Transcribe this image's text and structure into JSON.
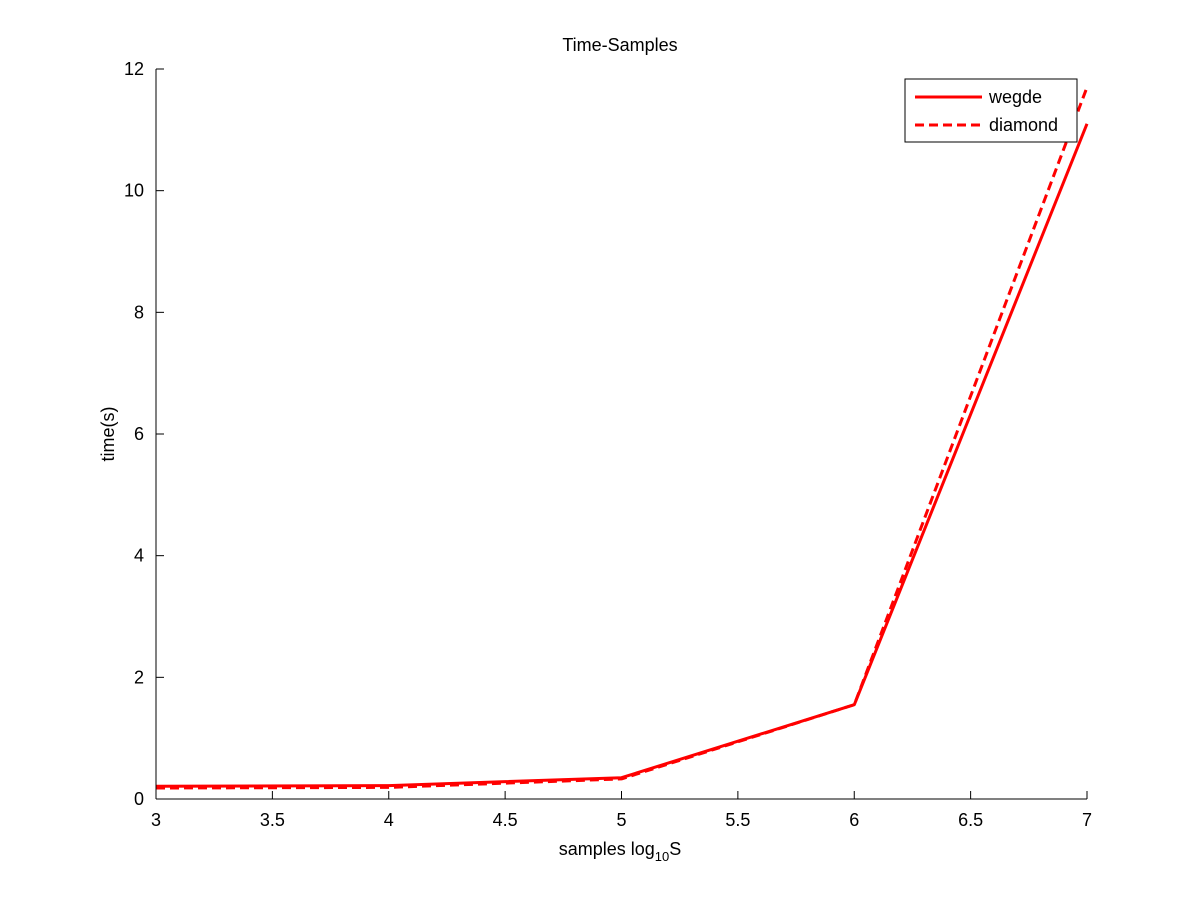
{
  "chart_data": {
    "type": "line",
    "title": "Time-Samples",
    "xlabel": {
      "prefix": "samples log",
      "subscript": "10",
      "suffix": "S"
    },
    "ylabel": "time(s)",
    "xlim": [
      3,
      7
    ],
    "ylim": [
      0,
      12
    ],
    "xticks": [
      3,
      3.5,
      4,
      4.5,
      5,
      5.5,
      6,
      6.5,
      7
    ],
    "xtick_labels": [
      "3",
      "3.5",
      "4",
      "4.5",
      "5",
      "5.5",
      "6",
      "6.5",
      "7"
    ],
    "yticks": [
      0,
      2,
      4,
      6,
      8,
      10,
      12
    ],
    "ytick_labels": [
      "0",
      "2",
      "4",
      "6",
      "8",
      "10",
      "12"
    ],
    "grid": false,
    "legend_position": "top-right",
    "series": [
      {
        "name": "wegde",
        "style": "solid",
        "color": "#ff0000",
        "x": [
          3,
          4,
          5,
          6,
          7
        ],
        "y": [
          0.21,
          0.22,
          0.35,
          1.55,
          11.1
        ]
      },
      {
        "name": "diamond",
        "style": "dashed",
        "color": "#ff0000",
        "x": [
          3,
          4,
          5,
          6,
          7
        ],
        "y": [
          0.18,
          0.19,
          0.33,
          1.55,
          11.7
        ]
      }
    ]
  }
}
